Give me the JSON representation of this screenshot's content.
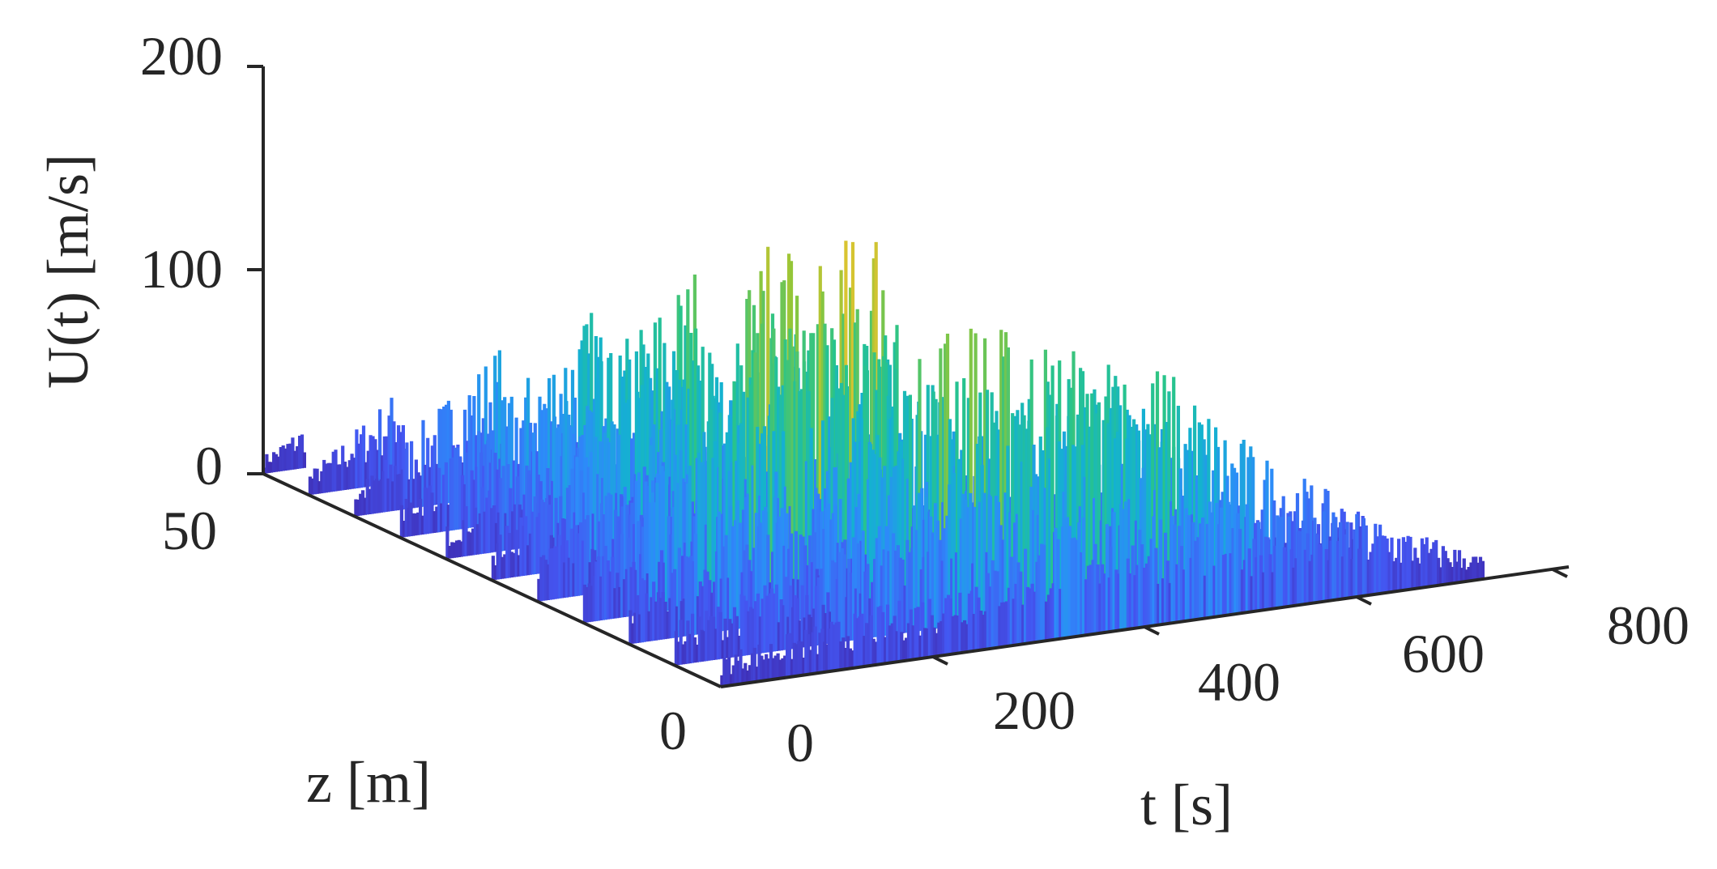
{
  "chart_data": {
    "type": "waterfall",
    "title": "",
    "xlabel": "t [s]",
    "ylabel": "z [m]",
    "zlabel": "U(t) [m/s]",
    "xlim": [
      0,
      800
    ],
    "ylim": [
      0,
      50
    ],
    "zlim": [
      0,
      200
    ],
    "xticks": [
      "0",
      "200",
      "400",
      "600",
      "800"
    ],
    "yticks": [
      "0",
      "50"
    ],
    "zticks": [
      "0",
      "100",
      "200"
    ],
    "colormap": [
      "#3e26a8",
      "#4455f1",
      "#2d8bf9",
      "#14b2d0",
      "#28c48b",
      "#93c638",
      "#f2c32e",
      "#f9fb15"
    ],
    "grid": false,
    "series": [
      {
        "z": 50,
        "t_end": 40,
        "envelope": [
          [
            0,
            8
          ],
          [
            40,
            20
          ]
        ]
      },
      {
        "z": 45,
        "t_end": 90,
        "envelope": [
          [
            0,
            10
          ],
          [
            90,
            45
          ]
        ]
      },
      {
        "z": 40,
        "t_end": 140,
        "envelope": [
          [
            0,
            12
          ],
          [
            140,
            70
          ]
        ]
      },
      {
        "z": 35,
        "t_end": 190,
        "envelope": [
          [
            0,
            15
          ],
          [
            190,
            95
          ]
        ]
      },
      {
        "z": 30,
        "t_end": 240,
        "envelope": [
          [
            0,
            15
          ],
          [
            240,
            120
          ]
        ]
      },
      {
        "z": 25,
        "t_end": 290,
        "envelope": [
          [
            0,
            18
          ],
          [
            290,
            145
          ]
        ]
      },
      {
        "z": 20,
        "t_end": 340,
        "envelope": [
          [
            0,
            20
          ],
          [
            340,
            165
          ]
        ]
      },
      {
        "z": 15,
        "t_end": 390,
        "envelope": [
          [
            0,
            22
          ],
          [
            180,
            120
          ],
          [
            300,
            100
          ],
          [
            390,
            60
          ]
        ]
      },
      {
        "z": 10,
        "t_end": 550,
        "envelope": [
          [
            0,
            25
          ],
          [
            100,
            60
          ],
          [
            200,
            55
          ],
          [
            300,
            130
          ],
          [
            450,
            100
          ],
          [
            550,
            40
          ]
        ]
      },
      {
        "z": 5,
        "t_end": 650,
        "envelope": [
          [
            0,
            20
          ],
          [
            150,
            40
          ],
          [
            300,
            90
          ],
          [
            450,
            110
          ],
          [
            550,
            60
          ],
          [
            650,
            25
          ]
        ]
      },
      {
        "z": 0,
        "t_end": 720,
        "envelope": [
          [
            0,
            15
          ],
          [
            200,
            30
          ],
          [
            350,
            60
          ],
          [
            500,
            50
          ],
          [
            620,
            35
          ],
          [
            720,
            10
          ]
        ]
      }
    ]
  }
}
